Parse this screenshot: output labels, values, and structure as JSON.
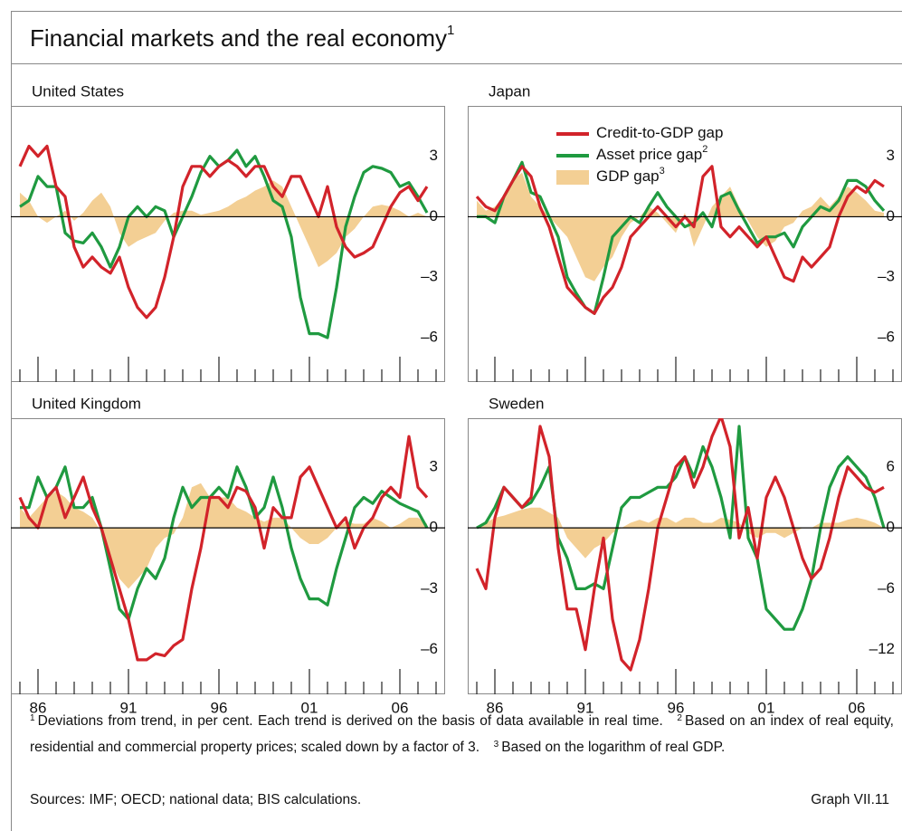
{
  "header": {
    "title": "Financial markets and the real economy",
    "title_note": "1"
  },
  "chart_data": [
    {
      "type": "line",
      "title": "United States",
      "xlim": [
        1984.5,
        2008.5
      ],
      "ylim": [
        -8.2,
        5.5
      ],
      "xticks": [
        1985,
        1986,
        1987,
        1988,
        1989,
        1990,
        1991,
        1992,
        1993,
        1994,
        1995,
        1996,
        1997,
        1998,
        1999,
        2000,
        2001,
        2002,
        2003,
        2004,
        2005,
        2006,
        2007,
        2008
      ],
      "yticks": [
        3,
        0,
        {
          "value": -3,
          "label": "–3"
        },
        {
          "value": -6,
          "label": "–6"
        }
      ],
      "x": [
        1985,
        1985.5,
        1986,
        1986.5,
        1987,
        1987.5,
        1988,
        1988.5,
        1989,
        1989.5,
        1990,
        1990.5,
        1991,
        1991.5,
        1992,
        1992.5,
        1993,
        1993.5,
        1994,
        1994.5,
        1995,
        1995.5,
        1996,
        1996.5,
        1997,
        1997.5,
        1998,
        1998.5,
        1999,
        1999.5,
        2000,
        2000.5,
        2001,
        2001.5,
        2002,
        2002.5,
        2003,
        2003.5,
        2004,
        2004.5,
        2005,
        2005.5,
        2006,
        2006.5,
        2007,
        2007.5
      ],
      "series": [
        {
          "kind": "area",
          "color": "#f3cf94",
          "values": [
            1.2,
            0.8,
            0,
            -0.3,
            0,
            0.3,
            -0.2,
            0.2,
            0.8,
            1.2,
            0.5,
            -0.8,
            -1.5,
            -1.2,
            -1,
            -0.8,
            -0.2,
            0.2,
            0.3,
            0.3,
            0.1,
            0.2,
            0.3,
            0.5,
            0.8,
            1,
            1.3,
            1.5,
            1.8,
            1.5,
            0.5,
            -0.5,
            -1.5,
            -2.5,
            -2.2,
            -1.8,
            -1,
            -0.6,
            0,
            0.5,
            0.6,
            0.5,
            0.3,
            0,
            0.2,
            0
          ]
        },
        {
          "kind": "line",
          "color": "#1f9a40",
          "values": [
            0.5,
            0.8,
            2,
            1.5,
            1.5,
            -0.8,
            -1.2,
            -1.3,
            -0.8,
            -1.5,
            -2.5,
            -1.5,
            0,
            0.5,
            0,
            0.5,
            0.3,
            -1,
            0,
            1,
            2.2,
            3,
            2.5,
            2.8,
            3.3,
            2.5,
            3,
            2,
            0.8,
            0.5,
            -1,
            -4,
            -5.8,
            -5.8,
            -6,
            -3.5,
            -0.5,
            1,
            2.2,
            2.5,
            2.4,
            2.2,
            1.5,
            1.7,
            1,
            0.2
          ]
        },
        {
          "kind": "line",
          "color": "#d2232a",
          "values": [
            2.5,
            3.5,
            3,
            3.5,
            1.5,
            1,
            -1.5,
            -2.5,
            -2,
            -2.5,
            -2.8,
            -2,
            -3.5,
            -4.5,
            -5,
            -4.5,
            -3,
            -1,
            1.5,
            2.5,
            2.5,
            2,
            2.5,
            2.8,
            2.5,
            2,
            2.5,
            2.5,
            1.5,
            1,
            2,
            2,
            1,
            0,
            1.5,
            -0.5,
            -1.5,
            -2,
            -1.8,
            -1.5,
            -0.5,
            0.5,
            1.2,
            1.5,
            0.8,
            1.5
          ]
        }
      ]
    },
    {
      "type": "line",
      "title": "Japan",
      "xlim": [
        1984.5,
        2008.5
      ],
      "ylim": [
        -8.2,
        5.5
      ],
      "legend": "top-center",
      "xticks": [
        1985,
        1986,
        1987,
        1988,
        1989,
        1990,
        1991,
        1992,
        1993,
        1994,
        1995,
        1996,
        1997,
        1998,
        1999,
        2000,
        2001,
        2002,
        2003,
        2004,
        2005,
        2006,
        2007,
        2008
      ],
      "yticks": [
        3,
        0,
        {
          "value": -3,
          "label": "–3"
        },
        {
          "value": -6,
          "label": "–6"
        }
      ],
      "x": [
        1985,
        1985.5,
        1986,
        1986.5,
        1987,
        1987.5,
        1988,
        1988.5,
        1989,
        1989.5,
        1990,
        1990.5,
        1991,
        1991.5,
        1992,
        1992.5,
        1993,
        1993.5,
        1994,
        1994.5,
        1995,
        1995.5,
        1996,
        1996.5,
        1997,
        1997.5,
        1998,
        1998.5,
        1999,
        1999.5,
        2000,
        2000.5,
        2001,
        2001.5,
        2002,
        2002.5,
        2003,
        2003.5,
        2004,
        2004.5,
        2005,
        2005.5,
        2006,
        2006.5,
        2007,
        2007.5
      ],
      "series": [
        {
          "kind": "area",
          "name": "GDP gap",
          "note": "3",
          "color": "#f3cf94",
          "values": [
            0.8,
            0.3,
            0.5,
            1,
            1.8,
            2.2,
            1,
            0.5,
            0,
            -0.5,
            -1,
            -2,
            -3,
            -3.2,
            -2.5,
            -2,
            -1,
            -0.3,
            0,
            0.5,
            0.2,
            -0.3,
            -0.8,
            0.2,
            -1.5,
            -0.5,
            0.5,
            1,
            1.5,
            0.5,
            -0.2,
            -1,
            -1.5,
            -1.2,
            -0.5,
            -0.3,
            0.3,
            0.5,
            1,
            0.5,
            1,
            1.5,
            1.2,
            0.8,
            0.3,
            0.2
          ]
        },
        {
          "kind": "line",
          "name": "Asset price gap",
          "note": "2",
          "color": "#1f9a40",
          "values": [
            0,
            0,
            -0.3,
            1,
            1.8,
            2.7,
            1.2,
            1,
            0,
            -1,
            -3,
            -3.8,
            -4.5,
            -4.8,
            -3,
            -1,
            -0.5,
            0,
            -0.3,
            0.5,
            1.2,
            0.5,
            0,
            -0.5,
            -0.3,
            0.2,
            -0.5,
            1,
            1.2,
            0.3,
            -0.5,
            -1.3,
            -1,
            -1,
            -0.8,
            -1.5,
            -0.5,
            0,
            0.5,
            0.3,
            0.8,
            1.8,
            1.8,
            1.5,
            0.8,
            0.3
          ]
        },
        {
          "kind": "line",
          "name": "Credit-to-GDP gap",
          "color": "#d2232a",
          "values": [
            1,
            0.5,
            0.3,
            1,
            1.8,
            2.5,
            2,
            0.5,
            -0.5,
            -2,
            -3.5,
            -4,
            -4.5,
            -4.8,
            -4,
            -3.5,
            -2.5,
            -1,
            -0.5,
            0,
            0.5,
            0,
            -0.5,
            0,
            -0.5,
            2,
            2.5,
            -0.5,
            -1,
            -0.5,
            -1,
            -1.5,
            -1,
            -2,
            -3,
            -3.2,
            -2,
            -2.5,
            -2,
            -1.5,
            0,
            1,
            1.5,
            1.2,
            1.8,
            1.5
          ]
        }
      ]
    },
    {
      "type": "line",
      "title": "United Kingdom",
      "xlim": [
        1984.5,
        2008.5
      ],
      "ylim": [
        -8.2,
        5.4
      ],
      "xticks": [
        1985,
        {
          "value": 1986,
          "label": "86"
        },
        1987,
        1988,
        1989,
        1990,
        {
          "value": 1991,
          "label": "91"
        },
        1992,
        1993,
        1994,
        1995,
        {
          "value": 1996,
          "label": "96"
        },
        1997,
        1998,
        1999,
        2000,
        {
          "value": 2001,
          "label": "01"
        },
        2002,
        2003,
        2004,
        2005,
        {
          "value": 2006,
          "label": "06"
        },
        2007,
        2008
      ],
      "yticks": [
        3,
        0,
        {
          "value": -3,
          "label": "–3"
        },
        {
          "value": -6,
          "label": "–6"
        }
      ],
      "x": [
        1985,
        1985.5,
        1986,
        1986.5,
        1987,
        1987.5,
        1988,
        1988.5,
        1989,
        1989.5,
        1990,
        1990.5,
        1991,
        1991.5,
        1992,
        1992.5,
        1993,
        1993.5,
        1994,
        1994.5,
        1995,
        1995.5,
        1996,
        1996.5,
        1997,
        1997.5,
        1998,
        1998.5,
        1999,
        1999.5,
        2000,
        2000.5,
        2001,
        2001.5,
        2002,
        2002.5,
        2003,
        2003.5,
        2004,
        2004.5,
        2005,
        2005.5,
        2006,
        2006.5,
        2007,
        2007.5
      ],
      "series": [
        {
          "kind": "area",
          "color": "#f3cf94",
          "values": [
            1,
            0.5,
            1,
            1.5,
            1.8,
            1.5,
            1,
            0.8,
            0.5,
            -0.2,
            -1.5,
            -2.5,
            -3,
            -2.5,
            -2,
            -1,
            -0.5,
            -0.3,
            0.5,
            2,
            2.2,
            1.5,
            1.5,
            1.5,
            1,
            0.8,
            0.5,
            0.3,
            0.5,
            0.5,
            0,
            -0.5,
            -0.8,
            -0.8,
            -0.5,
            0,
            0.3,
            0.2,
            0.2,
            0.5,
            0.3,
            0,
            0.2,
            0.5,
            0.5,
            0.2
          ]
        },
        {
          "kind": "line",
          "color": "#1f9a40",
          "values": [
            1,
            1,
            2.5,
            1.5,
            2,
            3,
            1,
            1,
            1.5,
            0,
            -2,
            -4,
            -4.5,
            -3,
            -2,
            -2.5,
            -1.5,
            0.5,
            2,
            1,
            1.5,
            1.5,
            2,
            1.5,
            3,
            2,
            0.5,
            1,
            2.5,
            1,
            -1,
            -2.5,
            -3.5,
            -3.5,
            -3.8,
            -2,
            -0.5,
            1,
            1.5,
            1.2,
            1.8,
            1.5,
            1.2,
            1,
            0.8,
            0
          ]
        },
        {
          "kind": "line",
          "color": "#d2232a",
          "values": [
            1.5,
            0.5,
            0,
            1.5,
            2,
            0.5,
            1.5,
            2.5,
            1,
            0,
            -1.5,
            -3,
            -4.5,
            -6.5,
            -6.5,
            -6.2,
            -6.3,
            -5.8,
            -5.5,
            -3,
            -1,
            1.5,
            1.5,
            1,
            2,
            1.8,
            1,
            -1,
            1,
            0.5,
            0.5,
            2.5,
            3,
            2,
            1,
            0,
            0.5,
            -1,
            0,
            0.5,
            1.5,
            2,
            1.5,
            4.5,
            2,
            1.5
          ]
        }
      ]
    },
    {
      "type": "line",
      "title": "Sweden",
      "xlim": [
        1984.5,
        2008.5
      ],
      "ylim": [
        -16.4,
        10.8
      ],
      "xticks": [
        1985,
        {
          "value": 1986,
          "label": "86"
        },
        1987,
        1988,
        1989,
        1990,
        {
          "value": 1991,
          "label": "91"
        },
        1992,
        1993,
        1994,
        1995,
        {
          "value": 1996,
          "label": "96"
        },
        1997,
        1998,
        1999,
        2000,
        {
          "value": 2001,
          "label": "01"
        },
        2002,
        2003,
        2004,
        2005,
        {
          "value": 2006,
          "label": "06"
        },
        2007,
        2008
      ],
      "yticks": [
        6,
        0,
        {
          "value": -6,
          "label": "–6"
        },
        {
          "value": -12,
          "label": "–12"
        }
      ],
      "x": [
        1985,
        1985.5,
        1986,
        1986.5,
        1987,
        1987.5,
        1988,
        1988.5,
        1989,
        1989.5,
        1990,
        1990.5,
        1991,
        1991.5,
        1992,
        1992.5,
        1993,
        1993.5,
        1994,
        1994.5,
        1995,
        1995.5,
        1996,
        1996.5,
        1997,
        1997.5,
        1998,
        1998.5,
        1999,
        1999.5,
        2000,
        2000.5,
        2001,
        2001.5,
        2002,
        2002.5,
        2003,
        2003.5,
        2004,
        2004.5,
        2005,
        2005.5,
        2006,
        2006.5,
        2007,
        2007.5
      ],
      "series": [
        {
          "kind": "area",
          "color": "#f3cf94",
          "values": [
            0,
            0.5,
            1,
            1.2,
            1.5,
            1.8,
            2,
            2,
            1.5,
            1,
            -1,
            -2,
            -3,
            -2,
            -1.5,
            -0.5,
            0,
            0.5,
            0.8,
            0.5,
            1,
            1,
            0.5,
            1,
            1,
            0.5,
            0.5,
            1,
            0.8,
            0.5,
            -0.5,
            -1,
            -0.5,
            -0.5,
            -1,
            -0.5,
            0,
            0,
            0.5,
            0.5,
            0.5,
            0.8,
            1,
            0.8,
            0.5,
            0
          ]
        },
        {
          "kind": "line",
          "color": "#1f9a40",
          "values": [
            0,
            0.5,
            2,
            4,
            3,
            2,
            2.5,
            4,
            6,
            -1,
            -3,
            -6,
            -6,
            -5.5,
            -6,
            -2,
            2,
            3,
            3,
            3.5,
            4,
            4,
            5,
            7,
            5,
            8,
            6,
            3,
            -1,
            10,
            -1,
            -3,
            -8,
            -9,
            -10,
            -10,
            -8,
            -5,
            0,
            4,
            6,
            7,
            6,
            5,
            3,
            0
          ]
        },
        {
          "kind": "line",
          "color": "#d2232a",
          "values": [
            -4,
            -6,
            1,
            4,
            3,
            2,
            3,
            10,
            7,
            -2,
            -8,
            -8,
            -12,
            -6,
            -1,
            -9,
            -13,
            -14,
            -11,
            -6,
            0,
            3,
            6,
            7,
            4,
            6,
            9,
            11,
            8,
            -1,
            2,
            -3,
            3,
            5,
            3,
            0,
            -3,
            -5,
            -4,
            -1,
            3,
            6,
            5,
            4,
            3.5,
            4
          ]
        }
      ]
    }
  ],
  "footnotes": [
    {
      "mark": "1",
      "text": "Deviations from trend, in per cent. Each trend is derived on the basis of data available in real time."
    },
    {
      "mark": "2",
      "text": "Based on an index of real equity, residential and commercial property prices; scaled down by a factor of 3."
    },
    {
      "mark": "3",
      "text": "Based on the logarithm of real GDP."
    }
  ],
  "sources": "Sources: IMF; OECD; national data; BIS calculations.",
  "graph_id": "Graph VII.11"
}
